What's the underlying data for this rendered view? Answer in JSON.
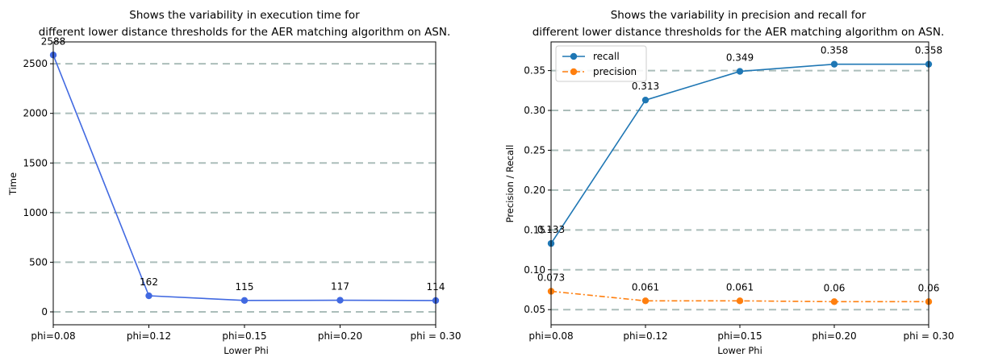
{
  "chart_data": [
    {
      "type": "line",
      "title_line1": "Shows the variability in execution time for",
      "title_line2": "different lower distance thresholds for the AER matching algorithm on ASN.",
      "xlabel": "Lower Phi",
      "ylabel": "Time",
      "categories": [
        "phi=0.08",
        "phi=0.12",
        "phi=0.15",
        "phi=0.20",
        "phi = 0.30"
      ],
      "yticks": [
        0,
        500,
        1000,
        1500,
        2000,
        2500
      ],
      "ylim": [
        -130,
        2720
      ],
      "grid": "horizontal dashed",
      "series": [
        {
          "values": [
            2588,
            162,
            115,
            117,
            114
          ],
          "labels": [
            "2588",
            "162",
            "115",
            "117",
            "114"
          ],
          "color": "#4169e1",
          "style": "solid"
        }
      ]
    },
    {
      "type": "line",
      "title_line1": "Shows the variability in precision and recall for",
      "title_line2": "different lower distance thresholds for the AER matching algorithm on ASN.",
      "xlabel": "Lower Phi",
      "ylabel": "Precision / Recall",
      "categories": [
        "phi=0.08",
        "phi=0.12",
        "phi=0.15",
        "phi=0.20",
        "phi = 0.30"
      ],
      "yticks": [
        0.05,
        0.1,
        0.15,
        0.2,
        0.25,
        0.3,
        0.35
      ],
      "ytick_labels": [
        "0.05",
        "0.10",
        "0.15",
        "0.20",
        "0.25",
        "0.30",
        "0.35"
      ],
      "ylim": [
        0.031,
        0.386
      ],
      "grid": "horizontal dashed",
      "legend": "top-left",
      "series": [
        {
          "name": "recall",
          "values": [
            0.133,
            0.313,
            0.349,
            0.358,
            0.358
          ],
          "labels": [
            "0.133",
            "0.313",
            "0.349",
            "0.358",
            "0.358"
          ],
          "color": "#1f77b4",
          "style": "solid"
        },
        {
          "name": "precision",
          "values": [
            0.073,
            0.061,
            0.061,
            0.06,
            0.06
          ],
          "labels": [
            "0.073",
            "0.061",
            "0.061",
            "0.06",
            "0.06"
          ],
          "color": "#ff7f0e",
          "style": "dashdot"
        }
      ]
    }
  ]
}
